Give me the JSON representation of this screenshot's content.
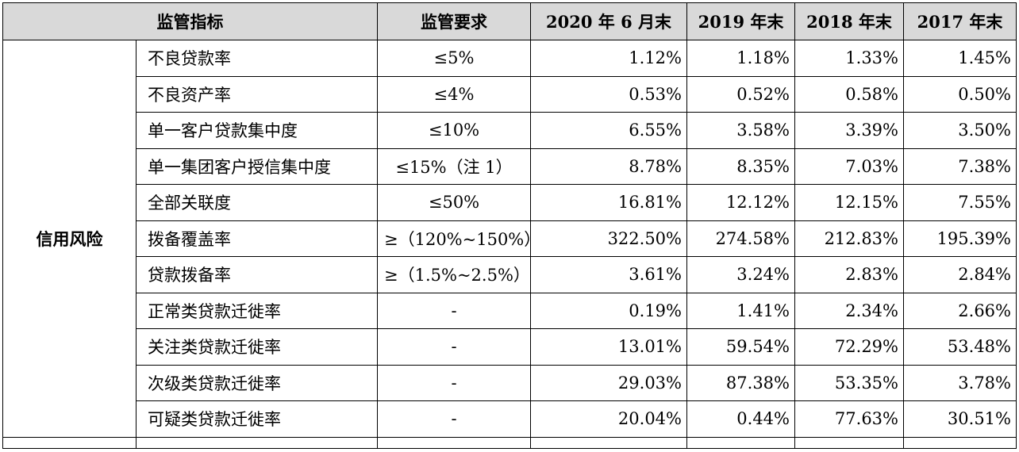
{
  "header": {
    "indicator": "监管指标",
    "requirement": "监管要求",
    "periods": [
      "2020 年 6 月末",
      "2019 年末",
      "2018 年末",
      "2017 年末"
    ]
  },
  "category": "信用风险",
  "rows": [
    {
      "name": "不良贷款率",
      "req": "≤5%",
      "values": [
        "1.12%",
        "1.18%",
        "1.33%",
        "1.45%"
      ]
    },
    {
      "name": "不良资产率",
      "req": "≤4%",
      "values": [
        "0.53%",
        "0.52%",
        "0.58%",
        "0.50%"
      ]
    },
    {
      "name": "单一客户贷款集中度",
      "req": "≤10%",
      "values": [
        "6.55%",
        "3.58%",
        "3.39%",
        "3.50%"
      ]
    },
    {
      "name": "单一集团客户授信集中度",
      "req": "≤15%（注 1）",
      "values": [
        "8.78%",
        "8.35%",
        "7.03%",
        "7.38%"
      ]
    },
    {
      "name": "全部关联度",
      "req": "≤50%",
      "values": [
        "16.81%",
        "12.12%",
        "12.15%",
        "7.55%"
      ]
    },
    {
      "name": "拨备覆盖率",
      "req": "≥（120%~150%）",
      "values": [
        "322.50%",
        "274.58%",
        "212.83%",
        "195.39%"
      ]
    },
    {
      "name": "贷款拨备率",
      "req": "≥（1.5%~2.5%）",
      "values": [
        "3.61%",
        "3.24%",
        "2.83%",
        "2.84%"
      ]
    },
    {
      "name": "正常类贷款迁徙率",
      "req": "-",
      "values": [
        "0.19%",
        "1.41%",
        "2.34%",
        "2.66%"
      ]
    },
    {
      "name": "关注类贷款迁徙率",
      "req": "-",
      "values": [
        "13.01%",
        "59.54%",
        "72.29%",
        "53.48%"
      ]
    },
    {
      "name": "次级类贷款迁徙率",
      "req": "-",
      "values": [
        "29.03%",
        "87.38%",
        "53.35%",
        "3.78%"
      ]
    },
    {
      "name": "可疑类贷款迁徙率",
      "req": "-",
      "values": [
        "20.04%",
        "0.44%",
        "77.63%",
        "30.51%"
      ]
    }
  ]
}
